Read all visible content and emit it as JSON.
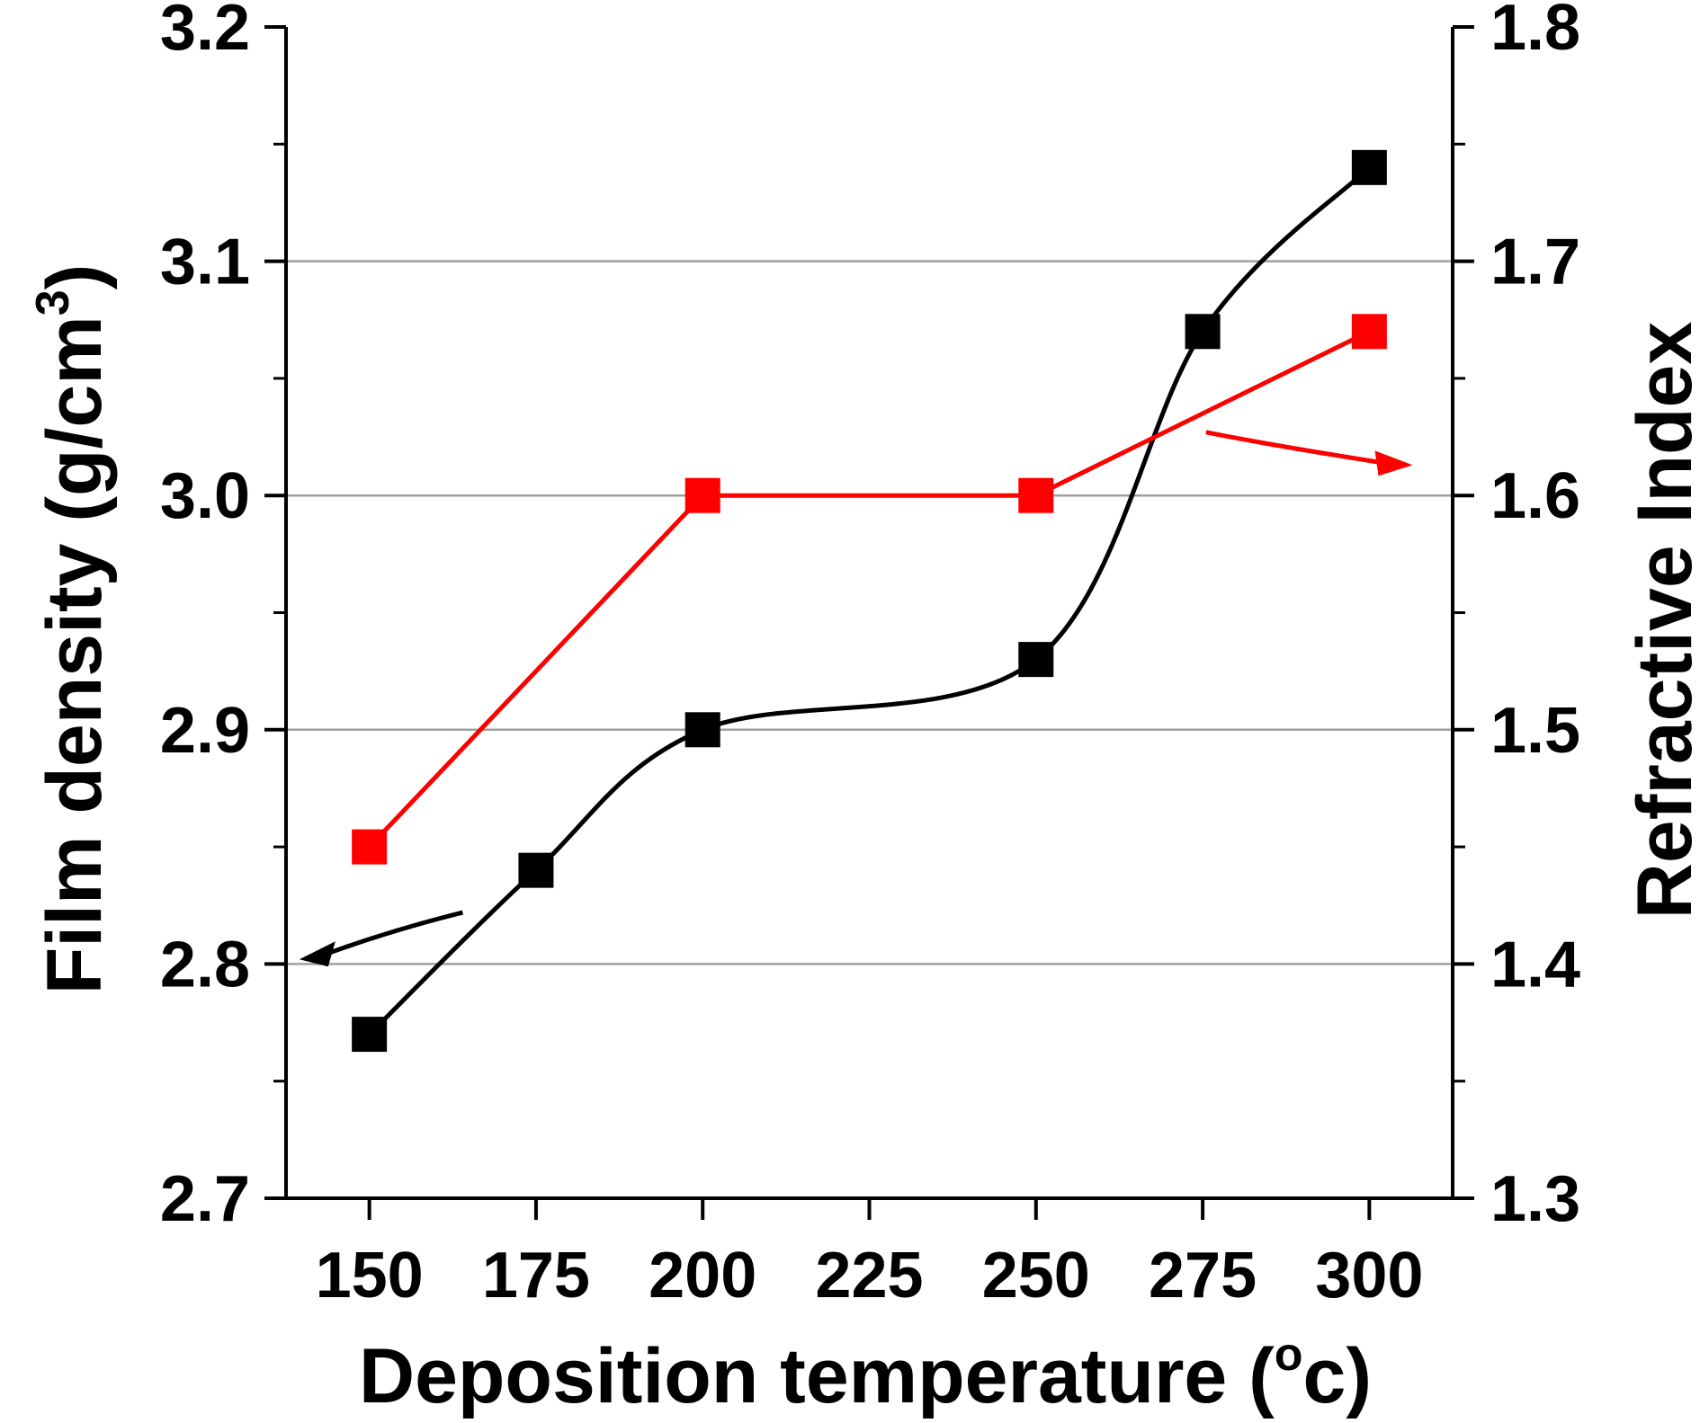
{
  "chart_data": {
    "type": "line",
    "x_axis": {
      "label_prefix": "Deposition temperature (",
      "label_unit_sup": "o",
      "label_unit": "c)",
      "xlim": [
        137.5,
        312.5
      ],
      "ticks": [
        150,
        175,
        200,
        225,
        250,
        275,
        300
      ],
      "tick_labels": [
        "150",
        "175",
        "200",
        "225",
        "250",
        "275",
        "300"
      ]
    },
    "y_axis_left": {
      "label": "Film density (g/cm",
      "label_sup": "3",
      "label_close": ")",
      "ylim": [
        2.7,
        3.2
      ],
      "ticks": [
        2.7,
        2.8,
        2.9,
        3.0,
        3.1,
        3.2
      ],
      "tick_labels": [
        "2.7",
        "2.8",
        "2.9",
        "3.0",
        "3.1",
        "3.2"
      ]
    },
    "y_axis_right": {
      "label": "Refractive Index",
      "ylim": [
        1.3,
        1.8
      ],
      "ticks": [
        1.3,
        1.4,
        1.5,
        1.6,
        1.7,
        1.8
      ],
      "tick_labels": [
        "1.3",
        "1.4",
        "1.5",
        "1.6",
        "1.7",
        "1.8"
      ]
    },
    "grid": "horizontal at 2.8, 2.9, 3.0, 3.1",
    "series": [
      {
        "axis": "left",
        "color": "#000000",
        "marker": "square",
        "line": "smooth",
        "x": [
          150,
          175,
          200,
          250,
          275,
          300
        ],
        "y": [
          2.77,
          2.84,
          2.9,
          2.93,
          3.07,
          3.14
        ]
      },
      {
        "axis": "right",
        "color": "#ff0000",
        "marker": "square",
        "line": "straight",
        "x": [
          150,
          200,
          250,
          300
        ],
        "y": [
          1.45,
          1.6,
          1.6,
          1.67
        ]
      }
    ],
    "annotations": [
      {
        "type": "arrow",
        "color": "#000000",
        "points_to": "left axis"
      },
      {
        "type": "arrow",
        "color": "#ff0000",
        "points_to": "right axis"
      }
    ]
  }
}
